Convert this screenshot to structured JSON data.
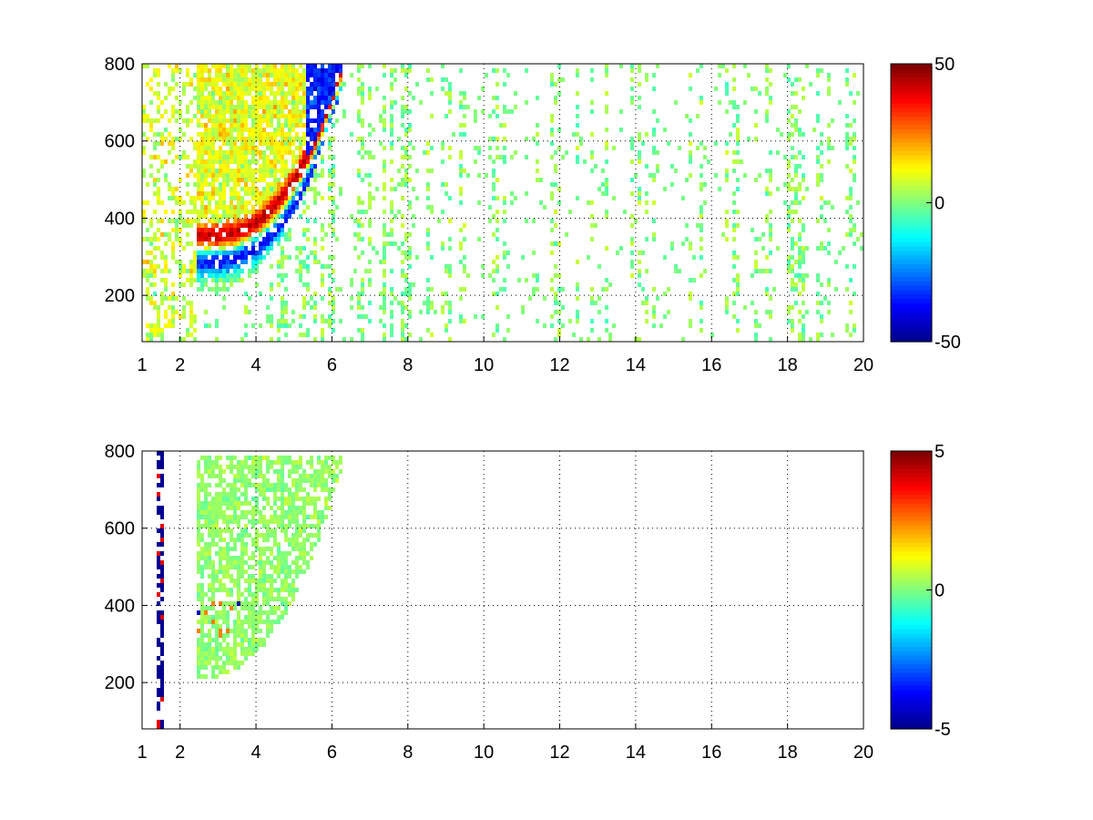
{
  "colormap": {
    "name": "jet",
    "stops": [
      "#00008f",
      "#0000ff",
      "#00ffff",
      "#ffff00",
      "#ff0000",
      "#800000"
    ]
  },
  "chart_data": [
    {
      "type": "heatmap",
      "title": "",
      "xlabel": "",
      "ylabel": "",
      "xlim": [
        1,
        20
      ],
      "ylim": [
        80,
        800
      ],
      "xticks": [
        1,
        2,
        4,
        6,
        8,
        10,
        12,
        14,
        16,
        18,
        20
      ],
      "xtick_labels": [
        "1",
        "2",
        "4",
        "6",
        "8",
        "10",
        "12",
        "14",
        "16",
        "18",
        "20"
      ],
      "yticks": [
        200,
        400,
        600,
        800
      ],
      "ytick_labels": [
        "200",
        "400",
        "600",
        "800"
      ],
      "grid": true,
      "colorbar": {
        "min": -50,
        "max": 50,
        "ticks": [
          -50,
          0,
          50
        ],
        "tick_labels": [
          "-50",
          "0",
          "50"
        ]
      },
      "features": {
        "ridge_positive_peak": 45,
        "ridge_negative_peak": -45,
        "band_x_range": [
          2.5,
          6.2
        ],
        "background_level": 0,
        "sparse_region_x_range": [
          6.2,
          20
        ]
      }
    },
    {
      "type": "heatmap",
      "title": "",
      "xlabel": "",
      "ylabel": "",
      "xlim": [
        1,
        20
      ],
      "ylim": [
        80,
        800
      ],
      "xticks": [
        1,
        2,
        4,
        6,
        8,
        10,
        12,
        14,
        16,
        18,
        20
      ],
      "xtick_labels": [
        "1",
        "2",
        "4",
        "6",
        "8",
        "10",
        "12",
        "14",
        "16",
        "18",
        "20"
      ],
      "yticks": [
        200,
        400,
        600,
        800
      ],
      "ytick_labels": [
        "200",
        "400",
        "600",
        "800"
      ],
      "grid": true,
      "colorbar": {
        "min": -5,
        "max": 5,
        "ticks": [
          -5,
          0,
          5
        ],
        "tick_labels": [
          "-5",
          "0",
          "5"
        ]
      },
      "features": {
        "band_x_range": [
          2.5,
          6.2
        ],
        "band_typical_value": 0.3,
        "extreme_values": [
          -5,
          5
        ]
      }
    }
  ]
}
